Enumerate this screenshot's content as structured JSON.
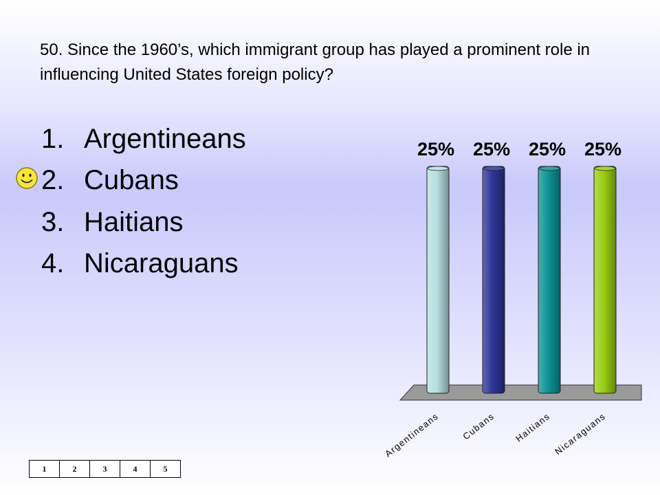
{
  "question": "50.  Since the 1960’s, which immigrant group has played a prominent role in influencing United States foreign policy?",
  "answers": [
    {
      "number": "1.",
      "text": "Argentineans"
    },
    {
      "number": "2.",
      "text": "Cubans"
    },
    {
      "number": "3.",
      "text": "Haitians"
    },
    {
      "number": "4.",
      "text": "Nicaraguans"
    }
  ],
  "correct_marker": {
    "icon": "smiley-icon",
    "answer": "Cubans"
  },
  "counter": [
    "1",
    "2",
    "3",
    "4",
    "5"
  ],
  "chart_data": {
    "type": "bar",
    "categories": [
      "Argentineans",
      "Cubans",
      "Haitians",
      "Nicaraguans"
    ],
    "values": [
      25,
      25,
      25,
      25
    ],
    "value_labels": [
      "25%",
      "25%",
      "25%",
      "25%"
    ],
    "ylim": [
      0,
      25
    ],
    "grid": false,
    "colors": [
      "#b7dfe0",
      "#2e3597",
      "#0e9396",
      "#9acd14"
    ]
  }
}
